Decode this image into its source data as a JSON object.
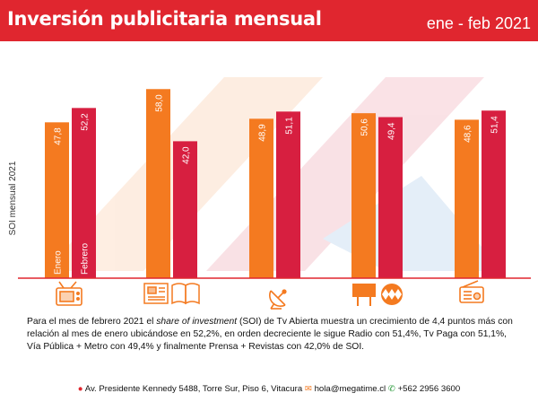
{
  "header": {
    "title": "Inversión publicitaria mensual",
    "period": "ene - feb 2021"
  },
  "chart_data": {
    "type": "bar",
    "ylabel": "SOI mensual 2021",
    "categories": [
      "Tv Abierta",
      "Prensa + Revistas",
      "Tv Paga",
      "Vía Pública + Metro",
      "Radio"
    ],
    "series": [
      {
        "name": "Enero",
        "values": [
          47.8,
          58.0,
          48.9,
          50.6,
          48.6
        ],
        "color": "#f47a20"
      },
      {
        "name": "Febrero",
        "values": [
          52.2,
          42.0,
          51.1,
          49.4,
          51.4
        ],
        "color": "#d71f40"
      }
    ],
    "data_labels": {
      "enero": [
        "47,8",
        "58,0",
        "48,9",
        "50,6",
        "48,6"
      ],
      "febrero": [
        "52,2",
        "42,0",
        "51,1",
        "49,4",
        "51,4"
      ]
    },
    "icons": [
      "tv-icon",
      "newspaper-magazine-icon",
      "satellite-dish-icon",
      "billboard-metro-icon",
      "radio-icon"
    ],
    "ylim": [
      0,
      60
    ],
    "grid": false
  },
  "description": {
    "part1": "Para el mes de febrero 2021 el ",
    "term": "share of investment",
    "part2": " (SOI) de Tv Abierta muestra un crecimiento de 4,4 puntos más con relación al mes de enero ubicándose en 52,2%, en orden decreciente le sigue Radio con 51,4%, Tv Paga con 51,1%, Vía Pública + Metro con 49,4% y finalmente Prensa + Revistas con 42,0% de SOI."
  },
  "footer": {
    "address": "Av. Presidente Kennedy 5488, Torre Sur, Piso 6, Vitacura",
    "email": "hola@megatime.cl",
    "phone": "+562 2956 3600"
  },
  "colors": {
    "header_bg": "#e0262f",
    "enero": "#f47a20",
    "febrero": "#d71f40",
    "icons": "#f47a20"
  }
}
